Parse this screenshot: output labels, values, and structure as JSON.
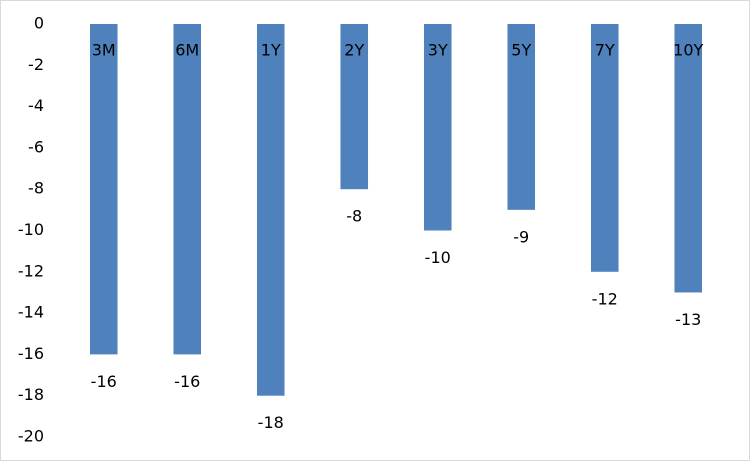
{
  "chart_data": {
    "type": "bar",
    "categories": [
      "3M",
      "6M",
      "1Y",
      "2Y",
      "3Y",
      "5Y",
      "7Y",
      "10Y"
    ],
    "values": [
      -16,
      -16,
      -18,
      -8,
      -10,
      -9,
      -12,
      -13
    ],
    "color": "#4f81bd",
    "ylim": [
      -20,
      0
    ],
    "yticks": [
      0,
      -2,
      -4,
      -6,
      -8,
      -10,
      -12,
      -14,
      -16,
      -18,
      -20
    ],
    "grid": false
  }
}
